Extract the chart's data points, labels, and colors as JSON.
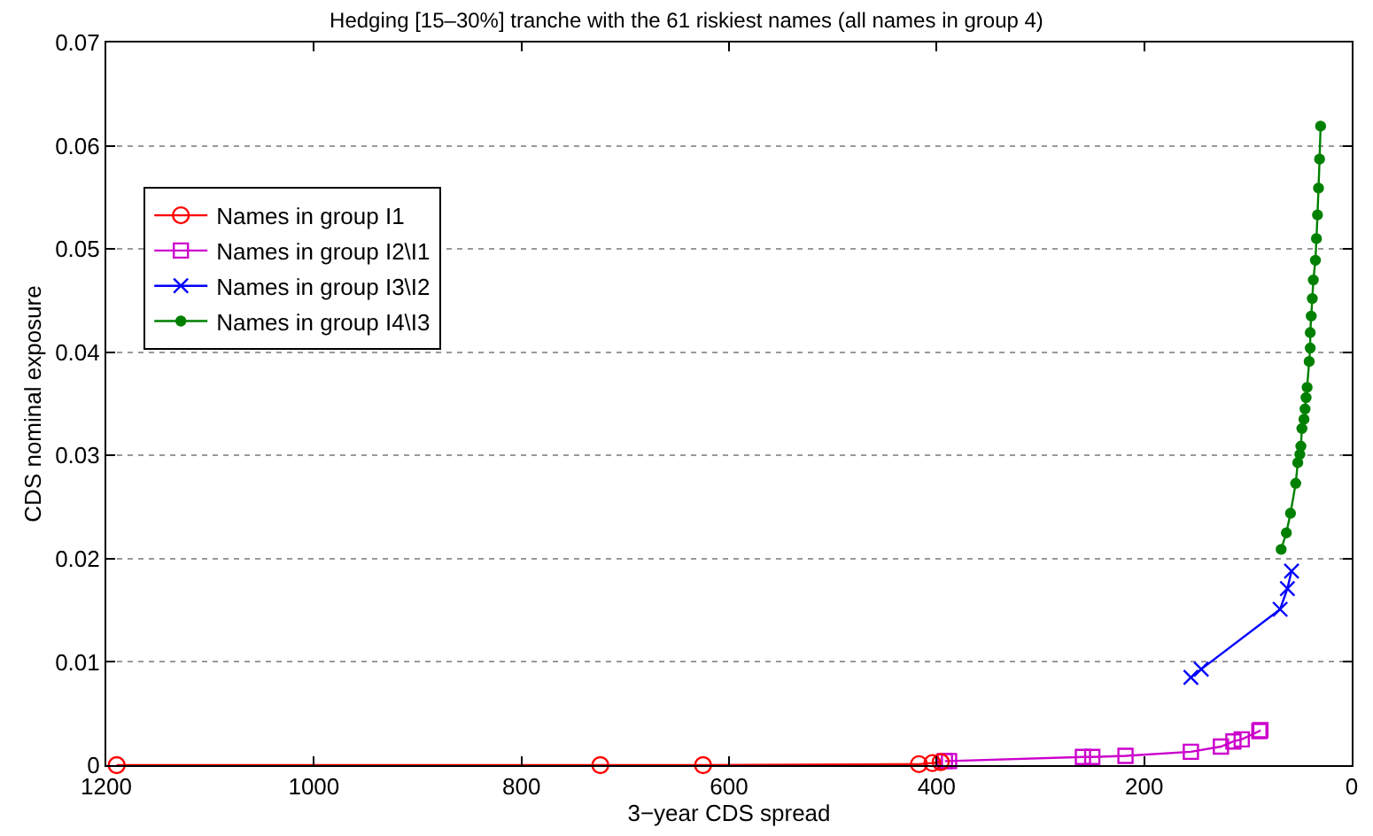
{
  "chart_data": {
    "type": "line",
    "title": "Hedging [15–30%] tranche with the 61 riskiest names (all names in group 4)",
    "xlabel": "3−year CDS spread",
    "ylabel": "CDS nominal exposure",
    "xlim": [
      1200,
      0
    ],
    "xticks": [
      1200,
      1000,
      800,
      600,
      400,
      200,
      0
    ],
    "ylim": [
      0,
      0.07
    ],
    "yticks": [
      0,
      0.01,
      0.02,
      0.03,
      0.04,
      0.05,
      0.06,
      0.07
    ],
    "grid": "y",
    "legend": "top left",
    "series": [
      {
        "name": "Names in group I1",
        "color": "#ff0000",
        "marker": "circle",
        "x": [
          1190,
          724,
          625,
          417,
          404,
          396
        ],
        "values": [
          0,
          0,
          0,
          0.0001,
          0.0002,
          0.0003
        ]
      },
      {
        "name": "Names in group I2\\I1",
        "color": "#cc00cc",
        "marker": "square",
        "x": [
          392,
          388,
          259,
          250,
          218,
          155,
          126,
          114,
          106,
          89,
          88
        ],
        "values": [
          0.0004,
          0.0004,
          0.0008,
          0.0008,
          0.0009,
          0.0013,
          0.0018,
          0.0023,
          0.0025,
          0.0033,
          0.0034
        ]
      },
      {
        "name": "Names in group I3\\I2",
        "color": "#0000ff",
        "marker": "cross",
        "x": [
          155,
          145,
          69,
          62,
          58
        ],
        "values": [
          0.0085,
          0.0093,
          0.0151,
          0.0171,
          0.0188
        ]
      },
      {
        "name": "Names in group I4\\I3",
        "color": "#008000",
        "marker": "circle_small",
        "x": [
          68,
          63,
          59,
          54,
          52,
          50,
          49,
          48,
          46,
          45,
          44,
          43,
          41,
          40,
          40,
          39,
          38,
          37,
          35,
          34,
          33,
          32,
          31,
          30
        ],
        "values": [
          0.0209,
          0.0225,
          0.0244,
          0.0273,
          0.0293,
          0.0301,
          0.0309,
          0.0326,
          0.0335,
          0.0345,
          0.0356,
          0.0366,
          0.0391,
          0.0404,
          0.0419,
          0.0435,
          0.0452,
          0.047,
          0.0489,
          0.051,
          0.0533,
          0.0559,
          0.0587,
          0.0619
        ]
      }
    ]
  }
}
